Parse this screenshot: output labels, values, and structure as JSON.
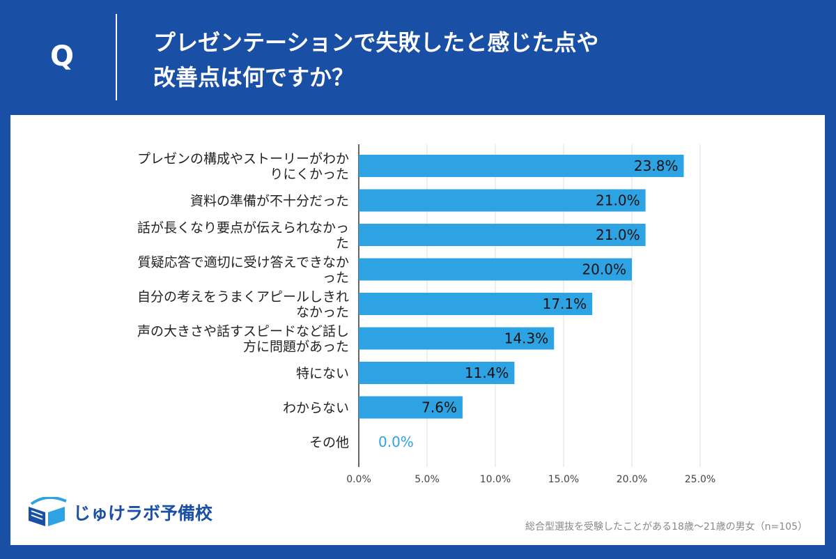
{
  "header": {
    "q_label": "Q",
    "title_line1": "プレゼンテーションで失敗したと感じた点や",
    "title_line2": "改善点は何ですか？"
  },
  "colors": {
    "background": "#1a4fa6",
    "bar": "#2ea3e3",
    "zero_label": "#2ea3e3",
    "grid": "#dddddd"
  },
  "chart_data": {
    "type": "bar",
    "orientation": "horizontal",
    "title": "プレゼンテーションで失敗したと感じた点や改善点は何ですか？",
    "categories": [
      [
        "プレゼンの構成やストーリーがわか",
        "りにくかった"
      ],
      [
        "資料の準備が不十分だった"
      ],
      [
        "話が長くなり要点が伝えられなかっ",
        "た"
      ],
      [
        "質疑応答で適切に受け答えできなか",
        "った"
      ],
      [
        "自分の考えをうまくアピールしきれ",
        "なかった"
      ],
      [
        "声の大きさや話すスピードなど話し",
        "方に問題があった"
      ],
      [
        "特にない"
      ],
      [
        "わからない"
      ],
      [
        "その他"
      ]
    ],
    "values": [
      23.8,
      21.0,
      21.0,
      20.0,
      17.1,
      14.3,
      11.4,
      7.6,
      0.0
    ],
    "value_labels": [
      "23.8%",
      "21.0%",
      "21.0%",
      "20.0%",
      "17.1%",
      "14.3%",
      "11.4%",
      "7.6%",
      "0.0%"
    ],
    "xlim": [
      0,
      25
    ],
    "x_ticks": [
      0,
      5,
      10,
      15,
      20,
      25
    ],
    "x_tick_labels": [
      "0.0%",
      "5.0%",
      "10.0%",
      "15.0%",
      "20.0%",
      "25.0%"
    ],
    "grid": true
  },
  "footer": {
    "logo_text": "じゅけラボ予備校",
    "note": "総合型選抜を受験したことがある18歳～21歳の男女（n=105）"
  }
}
